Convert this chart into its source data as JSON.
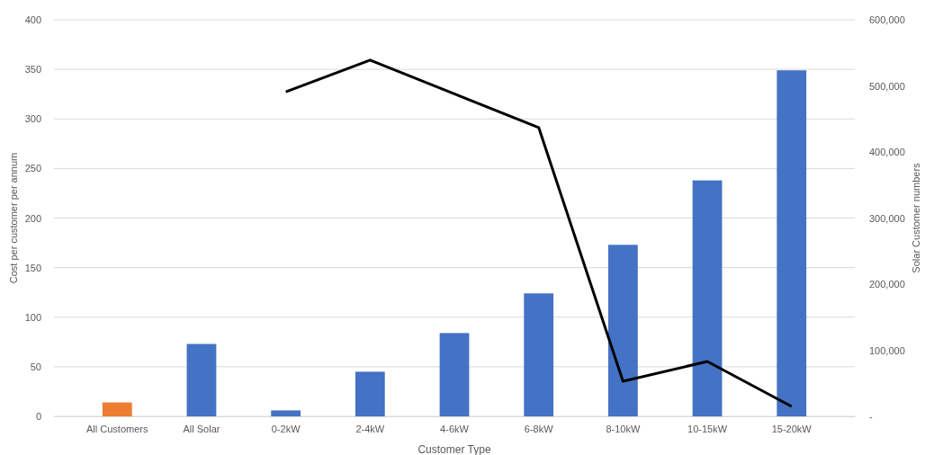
{
  "chart_data": {
    "type": "bar",
    "xlabel": "Customer Type",
    "ylabel": "Cost per customer per annum",
    "y2label": "Solar Customer numbers",
    "categories": [
      "All Customers",
      "All Solar",
      "0-2kW",
      "2-4kW",
      "4-6kW",
      "6-8kW",
      "8-10kW",
      "10-15kW",
      "15-20kW"
    ],
    "series": [
      {
        "colors": [
          "#ed7d31",
          "#4472c4",
          "#4472c4",
          "#4472c4",
          "#4472c4",
          "#4472c4",
          "#4472c4",
          "#4472c4",
          "#4472c4"
        ],
        "values": [
          14,
          73,
          6,
          45,
          84,
          124,
          173,
          238,
          349
        ]
      },
      {
        "type": "line",
        "axis": "y2",
        "color": "#000000",
        "values": [
          null,
          null,
          491000,
          539000,
          488000,
          437000,
          53000,
          83000,
          15000
        ]
      }
    ],
    "ylim": [
      0,
      400
    ],
    "yticks": [
      0,
      50,
      100,
      150,
      200,
      250,
      300,
      350,
      400
    ],
    "y2lim": [
      0,
      600000
    ],
    "y2ticks": [
      {
        "value": 0,
        "label": "-"
      },
      {
        "value": 100000,
        "label": "100,000"
      },
      {
        "value": 200000,
        "label": "200,000"
      },
      {
        "value": 300000,
        "label": "300,000"
      },
      {
        "value": 400000,
        "label": "400,000"
      },
      {
        "value": 500000,
        "label": "500,000"
      },
      {
        "value": 600000,
        "label": "600,000"
      }
    ],
    "grid": "y",
    "marker": "none",
    "line_style": "solid"
  }
}
